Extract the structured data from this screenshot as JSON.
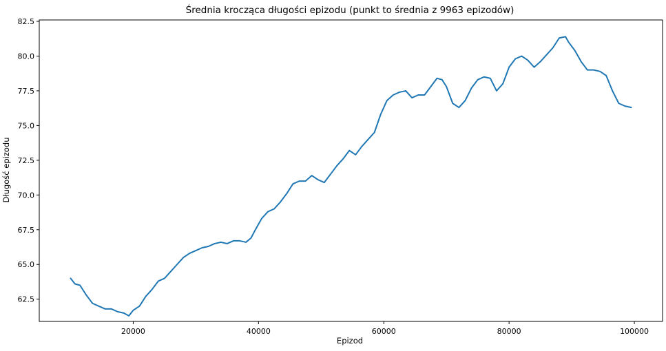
{
  "chart_data": {
    "type": "line",
    "title": "Średnia krocząca długości epizodu (punkt to średnia z 9963 epizodów)",
    "xlabel": "Epizod",
    "ylabel": "Długość epizodu",
    "xlim": [
      5000,
      104500
    ],
    "ylim": [
      60.9,
      82.6
    ],
    "xticks": [
      20000,
      40000,
      60000,
      80000,
      100000
    ],
    "xtick_labels": [
      "20000",
      "40000",
      "60000",
      "80000",
      "100000"
    ],
    "yticks": [
      62.5,
      65.0,
      67.5,
      70.0,
      72.5,
      75.0,
      77.5,
      80.0,
      82.5
    ],
    "ytick_labels": [
      "62.5",
      "65.0",
      "67.5",
      "70.0",
      "72.5",
      "75.0",
      "77.5",
      "80.0",
      "82.5"
    ],
    "grid": false,
    "series": [
      {
        "color": "#1f77b4",
        "x": [
          10000,
          10700,
          11500,
          12500,
          13500,
          14500,
          15500,
          16500,
          17500,
          18500,
          19300,
          20000,
          21000,
          22000,
          23000,
          24000,
          25000,
          26000,
          27000,
          28000,
          29000,
          30000,
          31000,
          32000,
          33000,
          34000,
          35000,
          36000,
          37000,
          38000,
          38800,
          39500,
          40500,
          41500,
          42500,
          43500,
          44500,
          45500,
          46500,
          47500,
          48500,
          49500,
          50500,
          51500,
          52500,
          53500,
          54500,
          55500,
          56500,
          57500,
          58500,
          59500,
          60500,
          61500,
          62500,
          63500,
          64500,
          65500,
          66500,
          67500,
          68500,
          69300,
          70000,
          71000,
          72000,
          73000,
          74000,
          75000,
          76000,
          77000,
          78000,
          79000,
          80000,
          81000,
          82000,
          83000,
          84000,
          85000,
          86000,
          87000,
          88000,
          89000,
          89500,
          90500,
          91500,
          92500,
          93500,
          94500,
          95500,
          96500,
          97500,
          98500,
          99500
        ],
        "y": [
          64.0,
          63.6,
          63.5,
          62.8,
          62.2,
          62.0,
          61.8,
          61.8,
          61.6,
          61.5,
          61.3,
          61.7,
          62.0,
          62.7,
          63.2,
          63.8,
          64.0,
          64.5,
          65.0,
          65.5,
          65.8,
          66.0,
          66.2,
          66.3,
          66.5,
          66.6,
          66.5,
          66.7,
          66.7,
          66.6,
          66.9,
          67.5,
          68.3,
          68.8,
          69.0,
          69.5,
          70.1,
          70.8,
          71.0,
          71.0,
          71.4,
          71.1,
          70.9,
          71.5,
          72.1,
          72.6,
          73.2,
          72.9,
          73.5,
          74.0,
          74.5,
          75.8,
          76.8,
          77.2,
          77.4,
          77.5,
          77.0,
          77.2,
          77.2,
          77.8,
          78.4,
          78.3,
          77.8,
          76.6,
          76.3,
          76.8,
          77.7,
          78.3,
          78.5,
          78.4,
          77.5,
          78.0,
          79.2,
          79.8,
          80.0,
          79.7,
          79.2,
          79.6,
          80.1,
          80.6,
          81.3,
          81.4,
          81.0,
          80.4,
          79.6,
          79.0,
          79.0,
          78.9,
          78.6,
          77.5,
          76.6,
          76.4,
          76.3
        ]
      }
    ]
  }
}
